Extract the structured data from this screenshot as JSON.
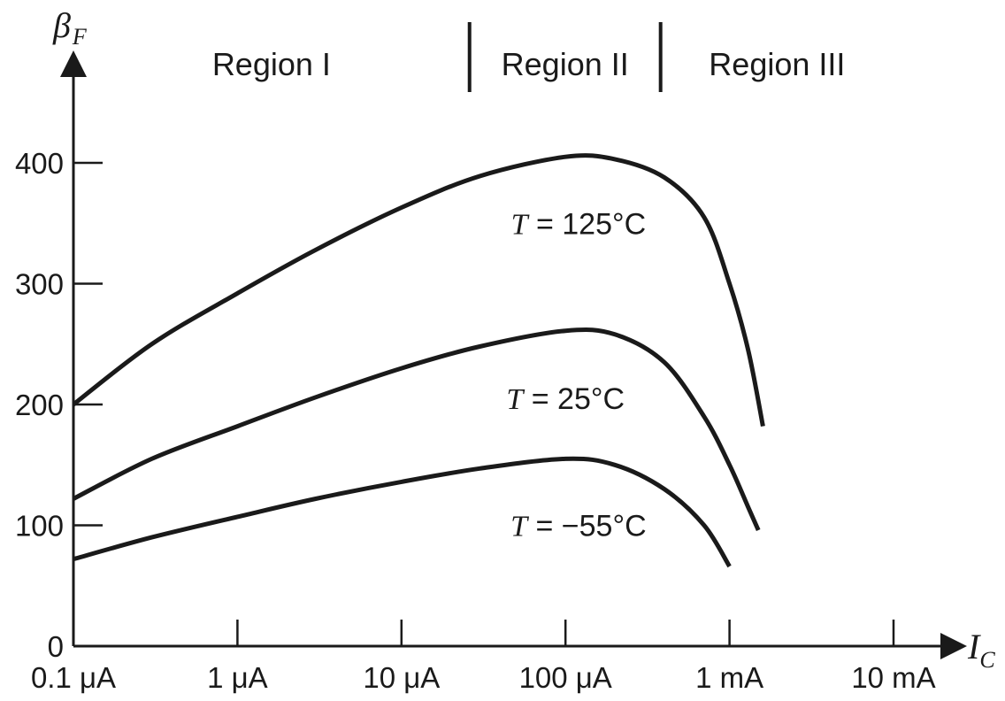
{
  "chart_data": {
    "type": "line",
    "x_scale": "log",
    "xlabel": {
      "main": "I",
      "sub": "C"
    },
    "ylabel": {
      "main": "β",
      "sub": "F"
    },
    "xlim": [
      0.1,
      10000
    ],
    "ylim": [
      0,
      400
    ],
    "x_ticks": [
      {
        "value": 0.1,
        "label": "0.1 μA"
      },
      {
        "value": 1,
        "label": "1 μA"
      },
      {
        "value": 10,
        "label": "10 μA"
      },
      {
        "value": 100,
        "label": "100 μA"
      },
      {
        "value": 1000,
        "label": "1 mA"
      },
      {
        "value": 10000,
        "label": "10 mA"
      }
    ],
    "y_ticks": [
      {
        "value": 0,
        "label": "0"
      },
      {
        "value": 100,
        "label": "100"
      },
      {
        "value": 200,
        "label": "200"
      },
      {
        "value": 300,
        "label": "300"
      },
      {
        "value": 400,
        "label": "400"
      }
    ],
    "x_unit": "μA",
    "regions": [
      {
        "name": "Region I",
        "x_start": 0.1,
        "x_end": 26
      },
      {
        "name": "Region II",
        "x_start": 26,
        "x_end": 380
      },
      {
        "name": "Region III",
        "x_start": 380,
        "x_end": 10000
      }
    ],
    "grid": false,
    "legend": "none",
    "series": [
      {
        "name_prefix": "T",
        "name_value": " = 125°C",
        "label_anchor_x": 120,
        "label_anchor_y": 350,
        "x": [
          0.1,
          0.3,
          1,
          3,
          10,
          30,
          100,
          200,
          400,
          700,
          1000,
          1300,
          1600
        ],
        "y": [
          200,
          250,
          292,
          328,
          363,
          389,
          405,
          403,
          388,
          355,
          300,
          245,
          182
        ]
      },
      {
        "name_prefix": "T",
        "name_value": " = 25°C",
        "label_anchor_x": 100,
        "label_anchor_y": 205,
        "x": [
          0.1,
          0.3,
          1,
          3,
          10,
          30,
          100,
          200,
          400,
          700,
          1000,
          1300,
          1500
        ],
        "y": [
          122,
          155,
          182,
          206,
          230,
          248,
          261,
          258,
          235,
          190,
          150,
          115,
          96
        ]
      },
      {
        "name_prefix": "T",
        "name_value": " = −55°C",
        "label_anchor_x": 120,
        "label_anchor_y": 100,
        "x": [
          0.1,
          0.3,
          1,
          3,
          10,
          30,
          100,
          200,
          400,
          700,
          1000
        ],
        "y": [
          72,
          90,
          107,
          122,
          136,
          147,
          155,
          150,
          130,
          100,
          66
        ]
      }
    ]
  }
}
